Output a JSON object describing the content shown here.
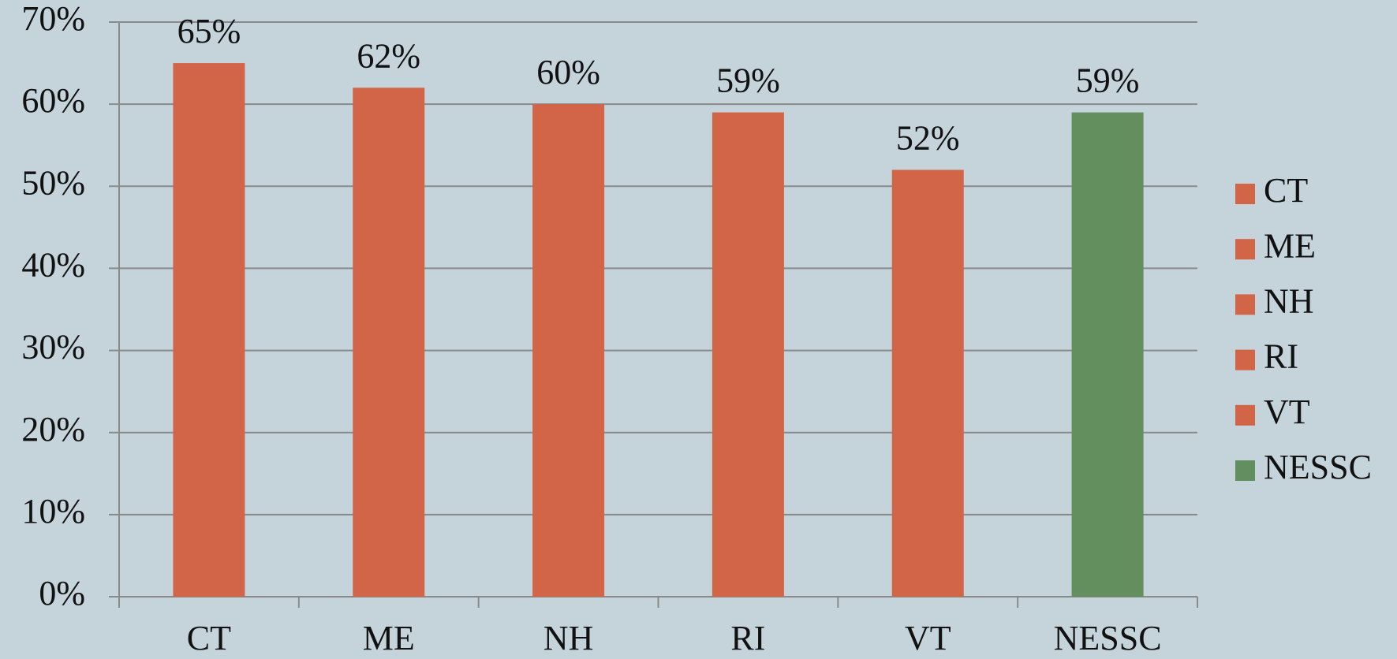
{
  "chart_data": {
    "type": "bar",
    "categories": [
      "CT",
      "ME",
      "NH",
      "RI",
      "VT",
      "NESSC"
    ],
    "values": [
      65,
      62,
      60,
      59,
      52,
      59
    ],
    "value_labels": [
      "65%",
      "62%",
      "60%",
      "59%",
      "52%",
      "59%"
    ],
    "colors": [
      "#d26547",
      "#d26547",
      "#d26547",
      "#d26547",
      "#d26547",
      "#638f5f"
    ],
    "ylim": [
      0,
      70
    ],
    "yticks": [
      {
        "value": 0,
        "label": "0%"
      },
      {
        "value": 10,
        "label": "10%"
      },
      {
        "value": 20,
        "label": "20%"
      },
      {
        "value": 30,
        "label": "30%"
      },
      {
        "value": 40,
        "label": "40%"
      },
      {
        "value": 50,
        "label": "50%"
      },
      {
        "value": 60,
        "label": "60%"
      },
      {
        "value": 70,
        "label": "70%"
      }
    ],
    "grid": true,
    "legend": "right"
  }
}
